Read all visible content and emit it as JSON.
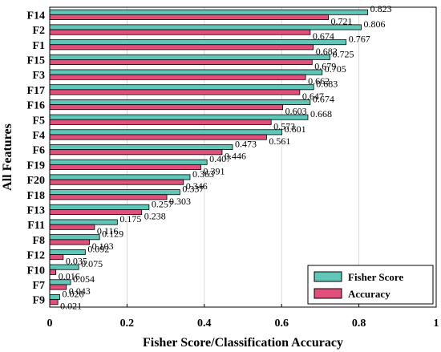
{
  "chart_data": {
    "type": "bar",
    "orientation": "horizontal",
    "categories": [
      "F14",
      "F2",
      "F1",
      "F15",
      "F3",
      "F17",
      "F16",
      "F5",
      "F4",
      "F6",
      "F19",
      "F20",
      "F18",
      "F13",
      "F11",
      "F8",
      "F12",
      "F10",
      "F7",
      "F9"
    ],
    "series": [
      {
        "name": "Fisher Score",
        "color": "#5fc6b8",
        "values": [
          0.823,
          0.806,
          0.767,
          0.725,
          0.705,
          0.683,
          0.674,
          0.668,
          0.601,
          0.473,
          0.407,
          0.363,
          0.337,
          0.257,
          0.175,
          0.129,
          0.092,
          0.075,
          0.054,
          0.026
        ]
      },
      {
        "name": "Accuracy",
        "color": "#e0507a",
        "values": [
          0.721,
          0.674,
          0.682,
          0.679,
          0.662,
          0.647,
          0.603,
          0.573,
          0.561,
          0.446,
          0.391,
          0.346,
          0.303,
          0.238,
          0.116,
          0.103,
          0.035,
          0.016,
          0.043,
          0.021
        ]
      }
    ],
    "data_labels": {
      "Fisher Score": [
        "0.823",
        "0.806",
        "0.767",
        "0.725",
        "0.705",
        "0.683",
        "0.674",
        "0.668",
        "0.601",
        "0.473",
        "0.407",
        "0.363",
        "0.337",
        "0.257",
        "0.175",
        "0.129",
        "0.092",
        "0.075",
        "0.054",
        "0.026"
      ],
      "Accuracy": [
        "0.721",
        "0.674",
        "0.682",
        "0.679",
        "0.662",
        "0.647",
        "0.603",
        "0.573",
        "0.561",
        "0.446",
        "0.391",
        "0.346",
        "0.303",
        "0.238",
        "0.116",
        "0.103",
        "0.035",
        "0.016",
        "0.043",
        "0.021"
      ]
    },
    "xlabel": "Fisher Score/Classification Accuracy",
    "ylabel": "All Features",
    "xlim": [
      0,
      1
    ],
    "xticks": [
      0,
      0.2,
      0.4,
      0.6,
      0.8,
      1
    ],
    "xtick_labels": [
      "0",
      "0.2",
      "0.4",
      "0.6",
      "0.8",
      "1"
    ],
    "grid": "vertical",
    "legend_position": "bottom-right"
  }
}
